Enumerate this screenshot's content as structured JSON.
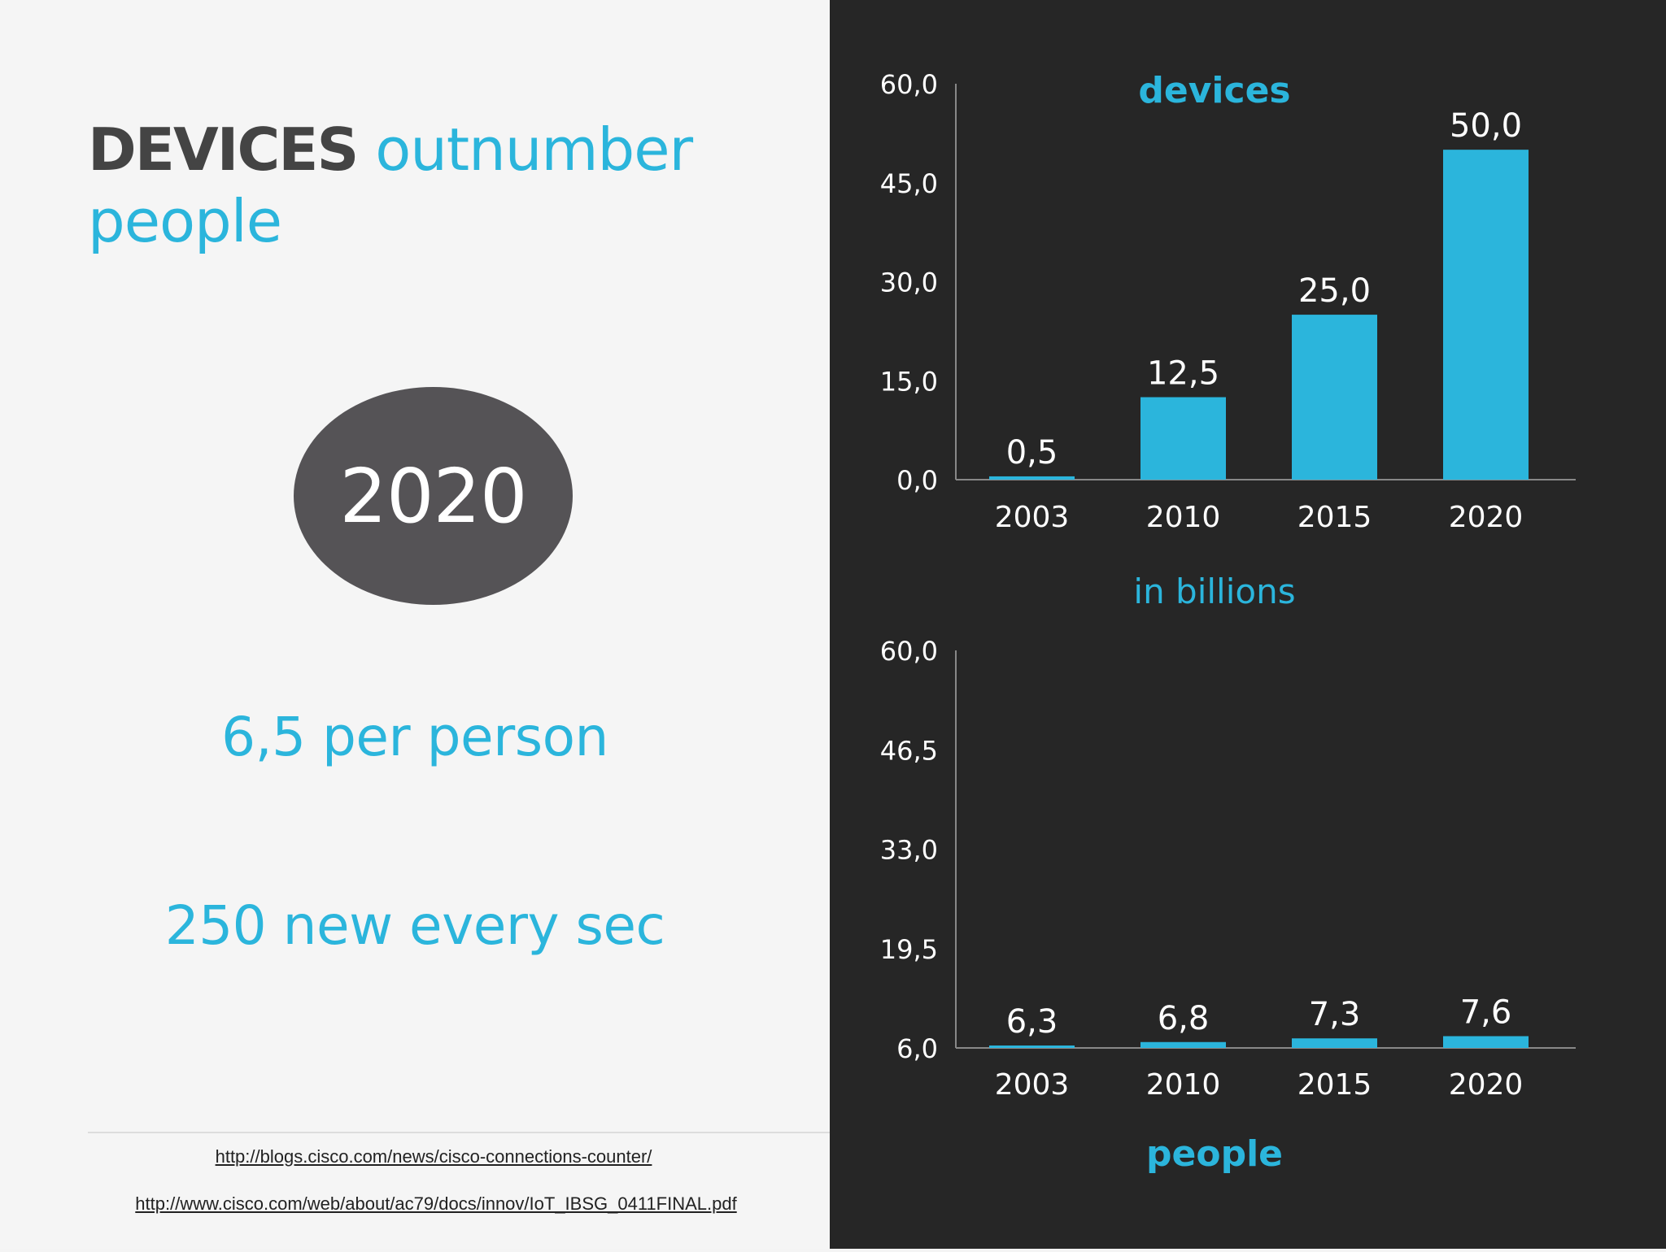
{
  "headline": {
    "bold": "DEVICES",
    "rest": "outnumber people"
  },
  "badge_year": "2020",
  "stats": [
    "6,5 per person",
    "250 new every sec"
  ],
  "links": [
    "http://blogs.cisco.com/news/cisco-connections-counter/",
    "http://www.cisco.com/web/about/ac79/docs/innov/IoT_IBSG_0411FINAL.pdf"
  ],
  "middle_label": "in billions",
  "colors": {
    "accent": "#2bb5dc",
    "dark_bg": "#262626",
    "badge": "#555356",
    "axis": "#888888"
  },
  "chart_data": [
    {
      "type": "bar",
      "title": "devices",
      "categories": [
        "2003",
        "2010",
        "2015",
        "2020"
      ],
      "values": [
        0.5,
        12.5,
        25.0,
        50.0
      ],
      "data_labels": [
        "0,5",
        "12,5",
        "25,0",
        "50,0"
      ],
      "ylim": [
        0,
        60
      ],
      "yticks": [
        "0,0",
        "15,0",
        "30,0",
        "45,0",
        "60,0"
      ],
      "grid": false
    },
    {
      "type": "bar",
      "title": "people",
      "categories": [
        "2003",
        "2010",
        "2015",
        "2020"
      ],
      "values": [
        6.3,
        6.8,
        7.3,
        7.6
      ],
      "data_labels": [
        "6,3",
        "6,8",
        "7,3",
        "7,6"
      ],
      "ylim": [
        6,
        60
      ],
      "yticks": [
        "6,0",
        "19,5",
        "33,0",
        "46,5",
        "60,0"
      ],
      "grid": false
    }
  ]
}
